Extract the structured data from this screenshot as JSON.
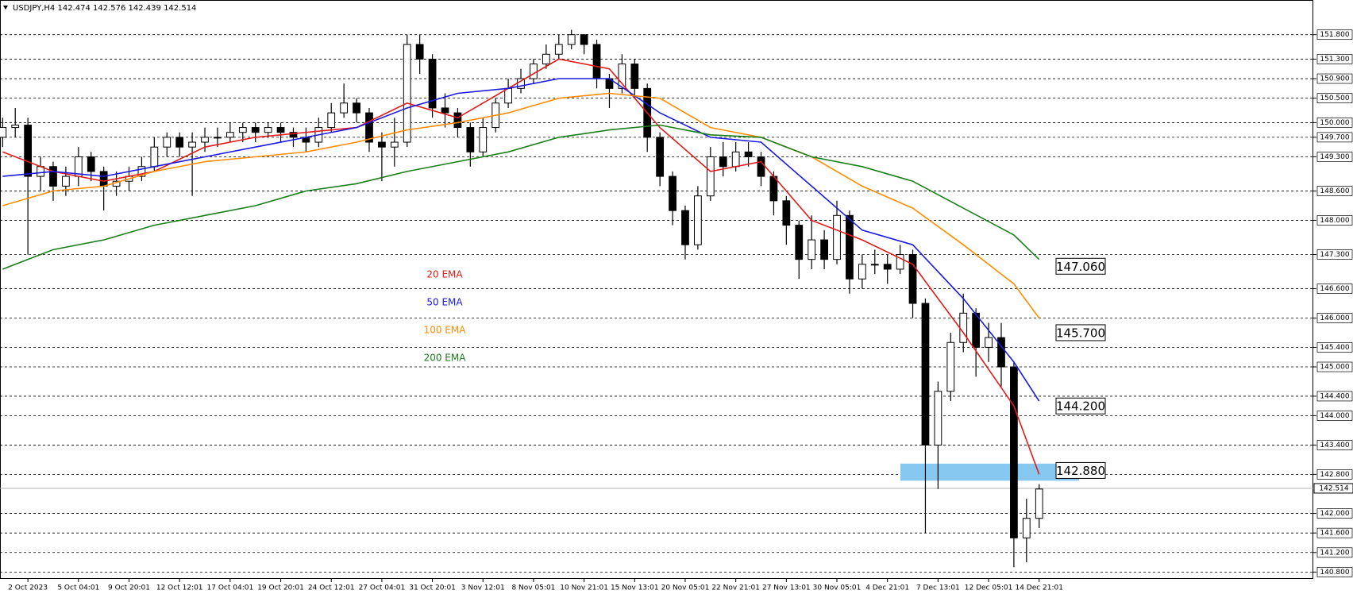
{
  "chart_data": {
    "type": "candlestick",
    "title": "USDJPY,H4  142.474 142.576 142.439 142.514",
    "categories": [
      null,
      null,
      "2 Oct 2023",
      null,
      null,
      null,
      "5 Oct 04:01",
      null,
      null,
      null,
      "9 Oct 20:01",
      null,
      null,
      null,
      "12 Oct 12:01",
      null,
      null,
      null,
      "17 Oct 04:01",
      null,
      null,
      null,
      "19 Oct 20:01",
      null,
      null,
      null,
      "24 Oct 12:01",
      null,
      null,
      null,
      "27 Oct 04:01",
      null,
      null,
      null,
      "31 Oct 20:01",
      null,
      null,
      null,
      "3 Nov 12:01",
      null,
      null,
      null,
      "8 Nov 05:01",
      null,
      null,
      null,
      "10 Nov 21:01",
      null,
      null,
      null,
      "15 Nov 13:01",
      null,
      null,
      null,
      "20 Nov 05:01",
      null,
      null,
      null,
      "22 Nov 21:01",
      null,
      null,
      null,
      "27 Nov 13:01",
      null,
      null,
      null,
      "30 Nov 05:01",
      null,
      null,
      null,
      "4 Dec 21:01",
      null,
      null,
      null,
      "7 Dec 13:01",
      null,
      null,
      null,
      "12 Dec 05:01",
      null,
      null,
      null,
      "14 Dec 21:01"
    ],
    "open": [
      149.7,
      149.9,
      149.95,
      148.9,
      149.1,
      148.7,
      148.9,
      149.3,
      149.0,
      148.7,
      148.8,
      148.9,
      149.1,
      149.5,
      149.7,
      149.5,
      149.6,
      149.7,
      149.7,
      149.8,
      149.9,
      149.8,
      149.9,
      149.8,
      149.7,
      149.6,
      149.9,
      150.2,
      150.4,
      150.2,
      149.6,
      149.5,
      149.6,
      151.6,
      151.3,
      150.3,
      150.2,
      149.9,
      149.4,
      149.9,
      150.4,
      150.7,
      150.9,
      151.2,
      151.4,
      151.6,
      151.8,
      151.6,
      150.9,
      150.7,
      151.2,
      150.7,
      149.7,
      148.9,
      148.2,
      147.5,
      148.5,
      149.3,
      149.1,
      149.4,
      149.3,
      148.9,
      148.4,
      147.9,
      147.2,
      147.6,
      147.2,
      148.1,
      146.8,
      147.1,
      147.1,
      147.0,
      147.3,
      146.3,
      143.4,
      144.5,
      145.5,
      146.1,
      145.4,
      145.6,
      145.0,
      141.5,
      141.9
    ],
    "high": [
      150.1,
      150.3,
      150.1,
      149.3,
      149.2,
      149.1,
      149.5,
      149.4,
      149.1,
      149.0,
      149.1,
      149.3,
      149.7,
      149.8,
      149.8,
      149.8,
      149.9,
      149.9,
      150.0,
      150.0,
      150.0,
      150.0,
      150.0,
      149.9,
      149.9,
      150.1,
      150.4,
      150.8,
      150.5,
      150.3,
      149.8,
      150.1,
      151.8,
      151.8,
      151.4,
      150.6,
      150.3,
      150.0,
      150.1,
      150.5,
      150.9,
      151.1,
      151.3,
      151.6,
      151.8,
      151.9,
      151.8,
      151.7,
      151.0,
      151.4,
      151.3,
      150.8,
      149.8,
      149.0,
      148.3,
      148.7,
      149.5,
      149.6,
      149.6,
      149.6,
      149.4,
      149.0,
      148.5,
      148.0,
      148.1,
      147.8,
      148.4,
      148.2,
      147.3,
      147.4,
      147.3,
      147.5,
      147.4,
      146.4,
      144.7,
      145.7,
      146.5,
      146.2,
      145.9,
      145.9,
      145.1,
      142.3,
      142.6
    ],
    "low": [
      149.5,
      149.7,
      147.3,
      148.6,
      148.4,
      148.5,
      148.7,
      148.8,
      148.2,
      148.5,
      148.6,
      148.8,
      149.0,
      149.3,
      149.3,
      148.5,
      149.4,
      149.5,
      149.6,
      149.6,
      149.6,
      149.7,
      149.6,
      149.5,
      149.4,
      149.5,
      149.8,
      150.1,
      150.0,
      149.4,
      148.8,
      149.1,
      149.5,
      151.0,
      150.1,
      149.9,
      149.7,
      149.1,
      149.3,
      149.8,
      150.3,
      150.6,
      150.8,
      151.1,
      151.3,
      151.5,
      151.4,
      150.7,
      150.3,
      150.6,
      150.5,
      149.4,
      148.7,
      147.9,
      147.2,
      147.4,
      148.4,
      148.9,
      149.0,
      149.1,
      148.7,
      148.1,
      147.5,
      146.8,
      147.0,
      147.0,
      147.1,
      146.5,
      146.6,
      146.9,
      146.7,
      146.9,
      146.0,
      141.6,
      142.5,
      144.3,
      145.3,
      144.8,
      145.1,
      144.6,
      140.9,
      141.0,
      141.7
    ],
    "close": [
      149.9,
      149.95,
      148.9,
      149.1,
      148.7,
      148.9,
      149.3,
      149.0,
      148.7,
      148.8,
      148.9,
      149.1,
      149.5,
      149.7,
      149.5,
      149.6,
      149.7,
      149.7,
      149.8,
      149.9,
      149.8,
      149.9,
      149.8,
      149.7,
      149.6,
      149.9,
      150.2,
      150.4,
      150.2,
      149.6,
      149.5,
      149.6,
      151.6,
      151.3,
      150.3,
      150.2,
      149.9,
      149.4,
      149.9,
      150.4,
      150.7,
      150.9,
      151.2,
      151.4,
      151.6,
      151.8,
      151.6,
      150.9,
      150.7,
      151.2,
      150.7,
      149.7,
      148.9,
      148.2,
      147.5,
      148.5,
      149.3,
      149.1,
      149.4,
      149.3,
      148.9,
      148.4,
      147.9,
      147.2,
      147.6,
      147.2,
      148.1,
      146.8,
      147.1,
      147.1,
      147.0,
      147.3,
      146.3,
      143.4,
      144.5,
      145.5,
      146.1,
      145.4,
      145.6,
      145.0,
      141.5,
      141.9,
      142.5
    ],
    "series": [
      {
        "name": "20 EMA",
        "color": "#e31a1a",
        "x": [
          0,
          4,
          8,
          12,
          16,
          20,
          24,
          28,
          32,
          36,
          40,
          44,
          48,
          52,
          56,
          60,
          64,
          68,
          72,
          76,
          80,
          82
        ],
        "values": [
          149.4,
          149.0,
          148.8,
          149.0,
          149.5,
          149.7,
          149.8,
          149.9,
          150.4,
          150.1,
          150.7,
          151.3,
          151.1,
          149.9,
          149.0,
          149.2,
          148.0,
          147.6,
          147.1,
          145.7,
          144.2,
          142.8
        ]
      },
      {
        "name": "50 EMA",
        "color": "#1a1ae0",
        "x": [
          0,
          4,
          8,
          12,
          16,
          20,
          24,
          28,
          32,
          36,
          40,
          44,
          48,
          52,
          56,
          60,
          64,
          68,
          72,
          76,
          80,
          82
        ],
        "values": [
          148.9,
          149.0,
          148.9,
          149.1,
          149.3,
          149.5,
          149.7,
          149.9,
          150.3,
          150.6,
          150.7,
          150.9,
          150.9,
          150.2,
          149.7,
          149.6,
          148.7,
          147.8,
          147.5,
          146.4,
          145.1,
          144.3
        ]
      },
      {
        "name": "100 EMA",
        "color": "#ff8c00",
        "x": [
          0,
          4,
          8,
          12,
          16,
          20,
          24,
          28,
          32,
          36,
          40,
          44,
          48,
          52,
          56,
          60,
          64,
          68,
          72,
          76,
          80,
          82
        ],
        "values": [
          148.3,
          148.6,
          148.7,
          149.0,
          149.2,
          149.3,
          149.4,
          149.6,
          149.85,
          150.0,
          150.2,
          150.5,
          150.6,
          150.5,
          149.9,
          149.7,
          149.3,
          148.7,
          148.25,
          147.5,
          146.7,
          146.0
        ]
      },
      {
        "name": "200 EMA",
        "color": "#1a7f1a",
        "x": [
          0,
          4,
          8,
          12,
          16,
          20,
          24,
          28,
          32,
          36,
          40,
          44,
          48,
          52,
          56,
          60,
          64,
          68,
          72,
          76,
          80,
          82
        ],
        "values": [
          147.0,
          147.4,
          147.6,
          147.9,
          148.1,
          148.3,
          148.6,
          148.75,
          149.0,
          149.2,
          149.4,
          149.7,
          149.85,
          149.95,
          149.75,
          149.7,
          149.3,
          149.1,
          148.8,
          148.25,
          147.7,
          147.2
        ]
      }
    ],
    "ylim": [
      140.66,
      152.51
    ],
    "yticks": [
      {
        "value": 151.8,
        "label": "151.800"
      },
      {
        "value": 151.3,
        "label": "151.300"
      },
      {
        "value": 150.9,
        "label": "150.900"
      },
      {
        "value": 150.5,
        "label": "150.500"
      },
      {
        "value": 150.0,
        "label": "150.000"
      },
      {
        "value": 149.7,
        "label": "149.700"
      },
      {
        "value": 149.3,
        "label": "149.300"
      },
      {
        "value": 148.6,
        "label": "148.600"
      },
      {
        "value": 148.0,
        "label": "148.000"
      },
      {
        "value": 147.3,
        "label": "147.300"
      },
      {
        "value": 146.6,
        "label": "146.600"
      },
      {
        "value": 146.0,
        "label": "146.000"
      },
      {
        "value": 145.4,
        "label": "145.400"
      },
      {
        "value": 145.0,
        "label": "145.000"
      },
      {
        "value": 144.4,
        "label": "144.400"
      },
      {
        "value": 144.0,
        "label": "144.000"
      },
      {
        "value": 143.4,
        "label": "143.400"
      },
      {
        "value": 142.8,
        "label": "142.800"
      },
      {
        "value": 142.0,
        "label": "142.000"
      },
      {
        "value": 141.6,
        "label": "141.600"
      },
      {
        "value": 141.2,
        "label": "141.200"
      },
      {
        "value": 140.8,
        "label": "140.800"
      }
    ],
    "grid": true,
    "current": {
      "value": 142.514,
      "label": "142.514"
    },
    "annotations": [
      {
        "value": 147.06,
        "label": "147.060"
      },
      {
        "value": 145.7,
        "label": "145.700"
      },
      {
        "value": 144.2,
        "label": "144.200"
      },
      {
        "value": 142.88,
        "label": "142.880"
      }
    ],
    "zone": [
      142.67,
      143.02
    ],
    "zone_color": "#87c8f0",
    "bull_color": "#ffffff",
    "bear_color": "#000000"
  }
}
